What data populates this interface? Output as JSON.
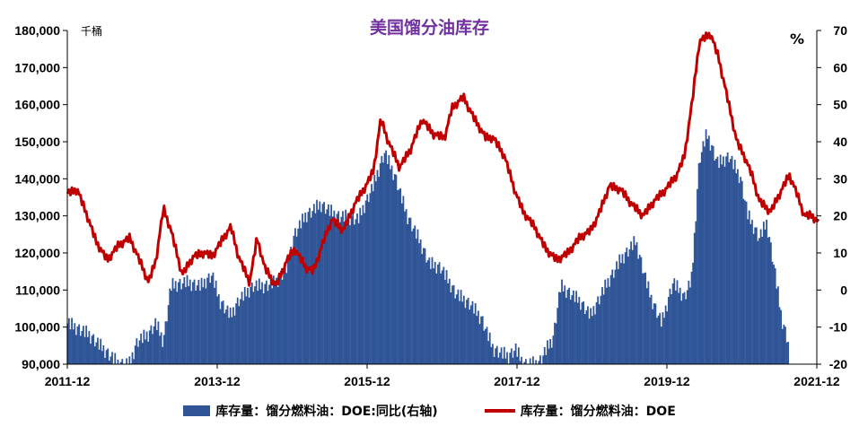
{
  "chart_data": {
    "type": "bar+line",
    "title": "美国馏分油库存",
    "left_axis_unit": "千桶",
    "right_axis_unit": "%",
    "ylim_left": [
      90000,
      180000
    ],
    "ylim_right": [
      -20,
      70
    ],
    "left_ticks": [
      "180,000",
      "170,000",
      "160,000",
      "150,000",
      "140,000",
      "130,000",
      "120,000",
      "110,000",
      "100,000",
      "90,000"
    ],
    "right_ticks": [
      "70",
      "60",
      "50",
      "40",
      "30",
      "20",
      "10",
      "0",
      "-10",
      "-20"
    ],
    "x_ticks": [
      "2011-12",
      "2013-12",
      "2015-12",
      "2017-12",
      "2019-12",
      "2021-12"
    ],
    "x_range_years": [
      2011.917,
      2021.917
    ],
    "colors": {
      "bars": "#2f5597",
      "line": "#c00000"
    },
    "series": [
      {
        "name": "库存量：馏分燃料油：DOE:同比(右轴)",
        "axis": "right",
        "type": "bar",
        "points": [
          [
            2011.92,
            -9
          ],
          [
            2012.2,
            -12
          ],
          [
            2012.4,
            -16
          ],
          [
            2012.6,
            -20
          ],
          [
            2012.75,
            -20
          ],
          [
            2012.85,
            -14
          ],
          [
            2013.0,
            -12
          ],
          [
            2013.1,
            -9
          ],
          [
            2013.2,
            -14
          ],
          [
            2013.3,
            1
          ],
          [
            2013.5,
            2
          ],
          [
            2013.7,
            1
          ],
          [
            2013.85,
            4
          ],
          [
            2013.95,
            -3
          ],
          [
            2014.1,
            -7
          ],
          [
            2014.2,
            -3
          ],
          [
            2014.4,
            1
          ],
          [
            2014.55,
            1
          ],
          [
            2014.7,
            2
          ],
          [
            2014.85,
            6
          ],
          [
            2014.95,
            15
          ],
          [
            2015.1,
            20
          ],
          [
            2015.3,
            23
          ],
          [
            2015.5,
            20
          ],
          [
            2015.8,
            19
          ],
          [
            2016.0,
            28
          ],
          [
            2016.15,
            37
          ],
          [
            2016.3,
            30
          ],
          [
            2016.45,
            20
          ],
          [
            2016.6,
            14
          ],
          [
            2016.75,
            7
          ],
          [
            2016.9,
            6
          ],
          [
            2017.1,
            -1
          ],
          [
            2017.3,
            -4
          ],
          [
            2017.45,
            -8
          ],
          [
            2017.6,
            -16
          ],
          [
            2017.8,
            -18
          ],
          [
            2017.9,
            -16
          ],
          [
            2018.0,
            -20
          ],
          [
            2018.2,
            -20
          ],
          [
            2018.4,
            -13
          ],
          [
            2018.5,
            1
          ],
          [
            2018.75,
            -3
          ],
          [
            2018.9,
            -7
          ],
          [
            2019.1,
            1
          ],
          [
            2019.3,
            8
          ],
          [
            2019.5,
            13
          ],
          [
            2019.7,
            -2
          ],
          [
            2019.85,
            -9
          ],
          [
            2020.0,
            2
          ],
          [
            2020.15,
            -2
          ],
          [
            2020.25,
            3
          ],
          [
            2020.35,
            35
          ],
          [
            2020.45,
            42
          ],
          [
            2020.6,
            34
          ],
          [
            2020.75,
            36
          ],
          [
            2020.9,
            30
          ],
          [
            2021.0,
            20
          ],
          [
            2021.15,
            14
          ],
          [
            2021.25,
            18
          ],
          [
            2021.35,
            6
          ],
          [
            2021.45,
            -8
          ],
          [
            2021.55,
            -15
          ]
        ]
      },
      {
        "name": "库存量：馏分燃料油：DOE",
        "axis": "left",
        "type": "line",
        "points": [
          [
            2011.92,
            136000
          ],
          [
            2012.05,
            137000
          ],
          [
            2012.2,
            129000
          ],
          [
            2012.3,
            123000
          ],
          [
            2012.45,
            118000
          ],
          [
            2012.6,
            122000
          ],
          [
            2012.75,
            124000
          ],
          [
            2012.9,
            117000
          ],
          [
            2013.0,
            112000
          ],
          [
            2013.1,
            118000
          ],
          [
            2013.2,
            132000
          ],
          [
            2013.3,
            126000
          ],
          [
            2013.45,
            114000
          ],
          [
            2013.6,
            119000
          ],
          [
            2013.75,
            120000
          ],
          [
            2013.85,
            119000
          ],
          [
            2014.0,
            124000
          ],
          [
            2014.1,
            127000
          ],
          [
            2014.2,
            119000
          ],
          [
            2014.35,
            112000
          ],
          [
            2014.45,
            124000
          ],
          [
            2014.55,
            116000
          ],
          [
            2014.7,
            111000
          ],
          [
            2014.85,
            118000
          ],
          [
            2014.95,
            121000
          ],
          [
            2015.1,
            116000
          ],
          [
            2015.2,
            115000
          ],
          [
            2015.35,
            124000
          ],
          [
            2015.45,
            129000
          ],
          [
            2015.6,
            126000
          ],
          [
            2015.75,
            133000
          ],
          [
            2015.9,
            138000
          ],
          [
            2016.0,
            142000
          ],
          [
            2016.1,
            156000
          ],
          [
            2016.2,
            150000
          ],
          [
            2016.35,
            143000
          ],
          [
            2016.5,
            148000
          ],
          [
            2016.65,
            156000
          ],
          [
            2016.8,
            152000
          ],
          [
            2016.95,
            151000
          ],
          [
            2017.05,
            159000
          ],
          [
            2017.2,
            162000
          ],
          [
            2017.35,
            156000
          ],
          [
            2017.5,
            151000
          ],
          [
            2017.6,
            151000
          ],
          [
            2017.75,
            146000
          ],
          [
            2017.9,
            136000
          ],
          [
            2018.0,
            131000
          ],
          [
            2018.15,
            127000
          ],
          [
            2018.3,
            121000
          ],
          [
            2018.45,
            118000
          ],
          [
            2018.6,
            120000
          ],
          [
            2018.75,
            124000
          ],
          [
            2018.9,
            126000
          ],
          [
            2019.0,
            130000
          ],
          [
            2019.15,
            138000
          ],
          [
            2019.3,
            137000
          ],
          [
            2019.45,
            133000
          ],
          [
            2019.6,
            130000
          ],
          [
            2019.75,
            134000
          ],
          [
            2019.9,
            137000
          ],
          [
            2020.05,
            141000
          ],
          [
            2020.15,
            146000
          ],
          [
            2020.25,
            160000
          ],
          [
            2020.35,
            177000
          ],
          [
            2020.5,
            179000
          ],
          [
            2020.6,
            173000
          ],
          [
            2020.7,
            164000
          ],
          [
            2020.85,
            150000
          ],
          [
            2020.95,
            146000
          ],
          [
            2021.05,
            141000
          ],
          [
            2021.15,
            134000
          ],
          [
            2021.3,
            131000
          ],
          [
            2021.45,
            137000
          ],
          [
            2021.55,
            141000
          ],
          [
            2021.65,
            136000
          ],
          [
            2021.75,
            130000
          ],
          [
            2021.85,
            130000
          ],
          [
            2021.95,
            128000
          ]
        ]
      }
    ],
    "legend": [
      "库存量：馏分燃料油：DOE:同比(右轴)",
      "库存量：馏分燃料油：DOE"
    ]
  }
}
